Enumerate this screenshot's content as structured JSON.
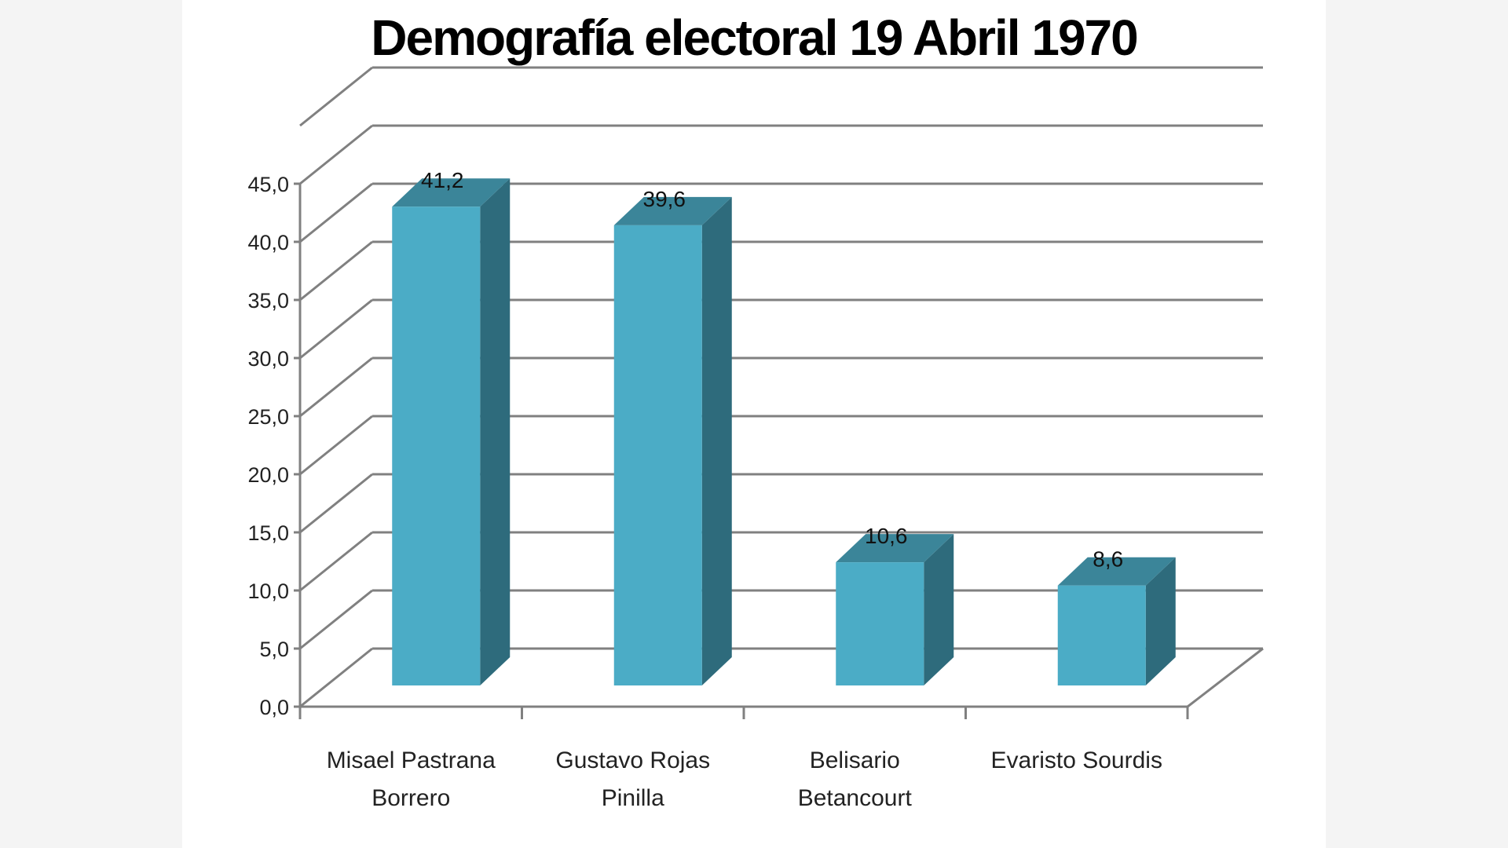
{
  "chart_data": {
    "type": "bar",
    "title": "Demografía electoral 19 Abril 1970",
    "xlabel": "",
    "ylabel": "",
    "categories": [
      [
        "Misael Pastrana",
        "Borrero"
      ],
      [
        "Gustavo Rojas",
        "Pinilla"
      ],
      [
        "Belisario",
        "Betancourt"
      ],
      [
        "Evaristo Sourdis"
      ]
    ],
    "values": [
      41.2,
      39.6,
      10.6,
      8.6
    ],
    "data_labels": [
      "41,2",
      "39,6",
      "10,6",
      "8,6"
    ],
    "ylim": [
      0,
      45
    ],
    "yticks": [
      0,
      5,
      10,
      15,
      20,
      25,
      30,
      35,
      40,
      45
    ],
    "ytick_labels": [
      "0,0",
      "5,0",
      "10,0",
      "15,0",
      "20,0",
      "25,0",
      "30,0",
      "35,0",
      "40,0",
      "45,0"
    ],
    "grid": true,
    "legend": "none",
    "style": "3d-column",
    "colors": {
      "bar_front": "#4bacc6",
      "bar_side": "#2e6b7c",
      "bar_top": "#3b8599",
      "grid": "#808080",
      "axis": "#808080"
    }
  }
}
